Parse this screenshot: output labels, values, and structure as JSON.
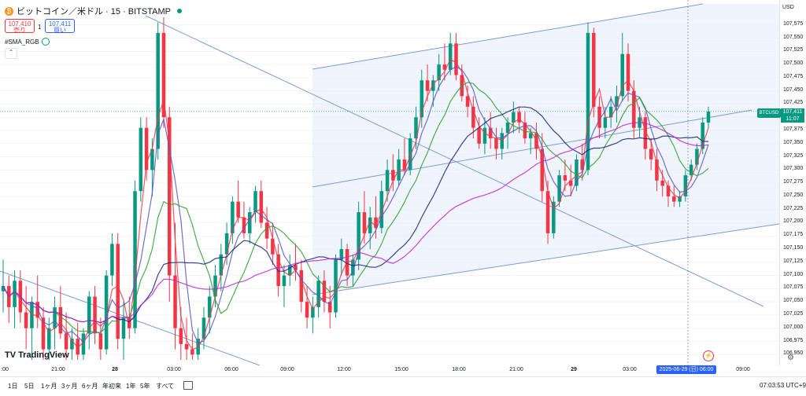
{
  "legend": {
    "title": "ビットコイン／米ドル · 15 · BITSTAMP",
    "sell_price": "107,410",
    "sell_label": "売り",
    "spread": "1",
    "buy_price": "107,411",
    "buy_label": "買い",
    "indicator": "#SMA_RGB"
  },
  "price_axis": {
    "currency": "USD",
    "ticks": [
      "107,575",
      "107,550",
      "107,525",
      "107,500",
      "107,475",
      "107,450",
      "107,425",
      "107,400",
      "107,375",
      "107,350",
      "107,325",
      "107,300",
      "107,275",
      "107,250",
      "107,225",
      "107,200",
      "107,175",
      "107,150",
      "107,125",
      "107,100",
      "107,075",
      "107,050",
      "107,025",
      "107,000",
      "106,975",
      "106,950"
    ],
    "symbol_tag": "BTCUSD",
    "current_price": "107,411",
    "countdown": "11:07"
  },
  "time_axis": {
    "ticks": [
      ":00",
      "21:00",
      "28",
      "03:00",
      "06:00",
      "09:00",
      "12:00",
      "15:00",
      "18:00",
      "21:00",
      "29",
      "03:00",
      "2025-06-29 (日)",
      "06:00",
      "09:00"
    ],
    "crosshair_label": "2025-06-29 (日)",
    "crosshair_time": "06:00"
  },
  "bottom_bar": {
    "ranges": [
      "1日",
      "5日",
      "1ヶ月",
      "3ヶ月",
      "6ヶ月",
      "年初来",
      "1年",
      "5年",
      "すべて"
    ],
    "clock": "07:03:53 UTC+9"
  },
  "logo": "TradingView",
  "colors": {
    "up": "#089981",
    "down": "#f23645",
    "accent": "#2962ff"
  },
  "chart_data": {
    "type": "candlestick",
    "symbol": "BTCUSD",
    "timeframe": "15",
    "ylim": [
      106940,
      107600
    ],
    "candles": [
      [
        107070,
        107130,
        107030,
        107080
      ],
      [
        107080,
        107100,
        107010,
        107040
      ],
      [
        107040,
        107110,
        107000,
        107090
      ],
      [
        107090,
        107110,
        107010,
        107030
      ],
      [
        107030,
        107080,
        106960,
        107000
      ],
      [
        107000,
        107060,
        106940,
        107050
      ],
      [
        107050,
        107100,
        107000,
        107020
      ],
      [
        107020,
        107040,
        106940,
        106960
      ],
      [
        106960,
        107020,
        106940,
        107000
      ],
      [
        107000,
        107060,
        106960,
        107040
      ],
      [
        107040,
        107080,
        106980,
        106990
      ],
      [
        106990,
        107030,
        106940,
        106960
      ],
      [
        106960,
        107000,
        106940,
        106980
      ],
      [
        106980,
        107010,
        106940,
        106950
      ],
      [
        106950,
        107000,
        106940,
        106990
      ],
      [
        106990,
        107070,
        106960,
        107060
      ],
      [
        107060,
        107080,
        106970,
        106990
      ],
      [
        106990,
        107020,
        106940,
        106960
      ],
      [
        106960,
        107110,
        106950,
        107100
      ],
      [
        107100,
        107180,
        107080,
        107160
      ],
      [
        107160,
        107180,
        106960,
        106980
      ],
      [
        106980,
        107050,
        106940,
        107020
      ],
      [
        107020,
        107060,
        106980,
        107000
      ],
      [
        107000,
        107280,
        106990,
        107260
      ],
      [
        107260,
        107400,
        107240,
        107380
      ],
      [
        107380,
        107400,
        107280,
        107300
      ],
      [
        107300,
        107360,
        107250,
        107340
      ],
      [
        107340,
        107580,
        107320,
        107560
      ],
      [
        107560,
        107590,
        107380,
        107400
      ],
      [
        107400,
        107420,
        107050,
        107100
      ],
      [
        107100,
        107200,
        106960,
        107000
      ],
      [
        107000,
        107040,
        106940,
        106970
      ],
      [
        106970,
        107020,
        106940,
        106960
      ],
      [
        106960,
        106990,
        106940,
        106950
      ],
      [
        106950,
        107000,
        106940,
        106980
      ],
      [
        106980,
        107040,
        106960,
        107020
      ],
      [
        107020,
        107080,
        106990,
        107060
      ],
      [
        107060,
        107120,
        107040,
        107100
      ],
      [
        107100,
        107160,
        107070,
        107140
      ],
      [
        107140,
        107200,
        107120,
        107180
      ],
      [
        107180,
        107250,
        107160,
        107240
      ],
      [
        107240,
        107280,
        107200,
        107210
      ],
      [
        107210,
        107240,
        107170,
        107180
      ],
      [
        107180,
        107230,
        107160,
        107220
      ],
      [
        107220,
        107270,
        107200,
        107260
      ],
      [
        107260,
        107280,
        107190,
        107200
      ],
      [
        107200,
        107230,
        107150,
        107170
      ],
      [
        107170,
        107200,
        107120,
        107140
      ],
      [
        107140,
        107160,
        107060,
        107080
      ],
      [
        107080,
        107120,
        107040,
        107100
      ],
      [
        107100,
        107140,
        107080,
        107120
      ],
      [
        107120,
        107160,
        107090,
        107110
      ],
      [
        107110,
        107130,
        107030,
        107050
      ],
      [
        107050,
        107080,
        107000,
        107020
      ],
      [
        107020,
        107060,
        106990,
        107040
      ],
      [
        107040,
        107100,
        107020,
        107090
      ],
      [
        107090,
        107110,
        107030,
        107050
      ],
      [
        107050,
        107080,
        107000,
        107030
      ],
      [
        107030,
        107140,
        107020,
        107130
      ],
      [
        107130,
        107170,
        107100,
        107150
      ],
      [
        107150,
        107160,
        107080,
        107100
      ],
      [
        107100,
        107140,
        107080,
        107130
      ],
      [
        107130,
        107240,
        107110,
        107220
      ],
      [
        107220,
        107260,
        107160,
        107180
      ],
      [
        107180,
        107230,
        107150,
        107210
      ],
      [
        107210,
        107250,
        107170,
        107190
      ],
      [
        107190,
        107280,
        107180,
        107260
      ],
      [
        107260,
        107320,
        107240,
        107300
      ],
      [
        107300,
        107330,
        107260,
        107280
      ],
      [
        107280,
        107340,
        107270,
        107320
      ],
      [
        107320,
        107360,
        107290,
        107300
      ],
      [
        107300,
        107370,
        107290,
        107360
      ],
      [
        107360,
        107420,
        107340,
        107400
      ],
      [
        107400,
        107490,
        107380,
        107470
      ],
      [
        107470,
        107500,
        107430,
        107450
      ],
      [
        107450,
        107480,
        107420,
        107470
      ],
      [
        107470,
        107520,
        107450,
        107500
      ],
      [
        107500,
        107540,
        107470,
        107490
      ],
      [
        107490,
        107560,
        107480,
        107540
      ],
      [
        107540,
        107560,
        107470,
        107480
      ],
      [
        107480,
        107500,
        107430,
        107440
      ],
      [
        107440,
        107460,
        107400,
        107420
      ],
      [
        107420,
        107440,
        107360,
        107380
      ],
      [
        107380,
        107400,
        107340,
        107350
      ],
      [
        107350,
        107400,
        107330,
        107380
      ],
      [
        107380,
        107410,
        107340,
        107360
      ],
      [
        107360,
        107380,
        107320,
        107340
      ],
      [
        107340,
        107380,
        107320,
        107370
      ],
      [
        107370,
        107400,
        107340,
        107390
      ],
      [
        107390,
        107430,
        107370,
        107410
      ],
      [
        107410,
        107420,
        107370,
        107390
      ],
      [
        107390,
        107410,
        107350,
        107360
      ],
      [
        107360,
        107380,
        107330,
        107370
      ],
      [
        107370,
        107390,
        107320,
        107340
      ],
      [
        107340,
        107370,
        107240,
        107260
      ],
      [
        107260,
        107280,
        107160,
        107180
      ],
      [
        107180,
        107250,
        107170,
        107240
      ],
      [
        107240,
        107300,
        107230,
        107290
      ],
      [
        107290,
        107320,
        107260,
        107280
      ],
      [
        107280,
        107310,
        107250,
        107270
      ],
      [
        107270,
        107330,
        107260,
        107320
      ],
      [
        107320,
        107350,
        107280,
        107300
      ],
      [
        107300,
        107580,
        107290,
        107560
      ],
      [
        107560,
        107570,
        107400,
        107420
      ],
      [
        107420,
        107440,
        107360,
        107380
      ],
      [
        107380,
        107420,
        107360,
        107400
      ],
      [
        107400,
        107440,
        107380,
        107420
      ],
      [
        107420,
        107460,
        107390,
        107440
      ],
      [
        107440,
        107560,
        107430,
        107520
      ],
      [
        107520,
        107540,
        107430,
        107450
      ],
      [
        107450,
        107470,
        107360,
        107380
      ],
      [
        107380,
        107420,
        107360,
        107400
      ],
      [
        107400,
        107410,
        107320,
        107340
      ],
      [
        107340,
        107360,
        107300,
        107320
      ],
      [
        107320,
        107340,
        107260,
        107280
      ],
      [
        107280,
        107300,
        107250,
        107270
      ],
      [
        107270,
        107280,
        107230,
        107250
      ],
      [
        107250,
        107270,
        107230,
        107240
      ],
      [
        107240,
        107260,
        107230,
        107250
      ],
      [
        107250,
        107300,
        107240,
        107290
      ],
      [
        107290,
        107320,
        107280,
        107310
      ],
      [
        107310,
        107350,
        107300,
        107340
      ],
      [
        107340,
        107400,
        107330,
        107390
      ],
      [
        107390,
        107420,
        107380,
        107411
      ]
    ]
  }
}
